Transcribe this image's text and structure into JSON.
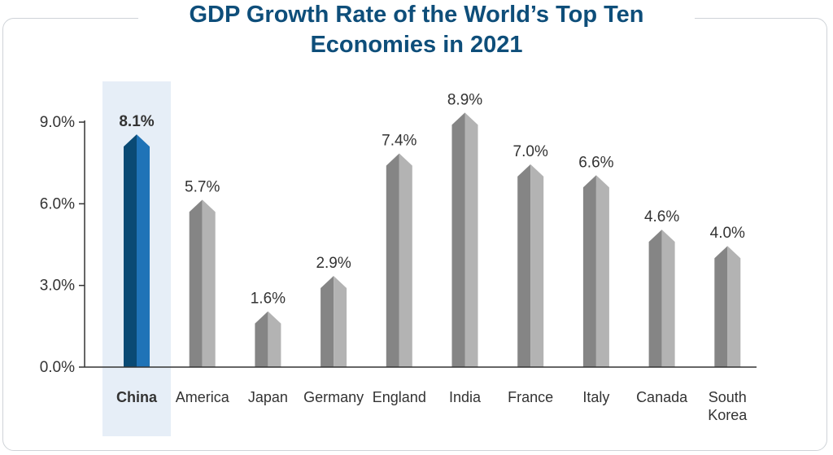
{
  "chart_data": {
    "type": "bar",
    "title": "GDP Growth Rate of the World’s Top Ten Economies in 2021",
    "title_lines": [
      "GDP Growth Rate of the World’s Top Ten",
      "Economies in 2021"
    ],
    "categories": [
      "China",
      "America",
      "Japan",
      "Germany",
      "England",
      "India",
      "France",
      "Italy",
      "Canada",
      "South Korea"
    ],
    "category_lines": [
      [
        "China"
      ],
      [
        "America"
      ],
      [
        "Japan"
      ],
      [
        "Germany"
      ],
      [
        "England"
      ],
      [
        "India"
      ],
      [
        "France"
      ],
      [
        "Italy"
      ],
      [
        "Canada"
      ],
      [
        "South",
        "Korea"
      ]
    ],
    "values": [
      8.1,
      5.7,
      1.6,
      2.9,
      7.4,
      8.9,
      7.0,
      6.6,
      4.6,
      4.0
    ],
    "value_labels": [
      "8.1%",
      "5.7%",
      "1.6%",
      "2.9%",
      "7.4%",
      "8.9%",
      "7.0%",
      "6.6%",
      "4.6%",
      "4.0%"
    ],
    "yticks": [
      0,
      3,
      6,
      9
    ],
    "ytick_labels": [
      "0.0%",
      "3.0%",
      "6.0%",
      "9.0%"
    ],
    "ylim": [
      0,
      9
    ],
    "xlabel": "",
    "ylabel": "",
    "highlight_index": 0,
    "grid": false,
    "colors": {
      "highlight_dark": "#0a4a74",
      "highlight_light": "#1f73b7",
      "highlight_text": "#1f6fad",
      "highlight_band": "#e6eef7",
      "bar_dark": "#858585",
      "bar_light": "#b3b3b3",
      "title": "#0e4e7a",
      "axis": "#333333"
    }
  }
}
